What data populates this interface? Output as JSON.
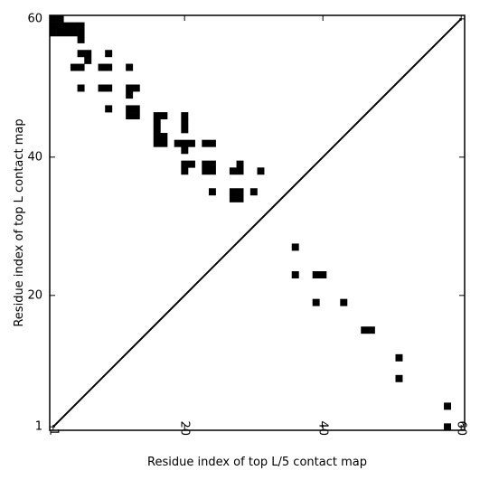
{
  "chart_data": {
    "type": "heatmap",
    "title": "",
    "xlabel": "Residue index of top L/5 contact map",
    "ylabel": "Residue index of top L contact map",
    "xlim": [
      0.5,
      60.5
    ],
    "ylim": [
      0.5,
      60.5
    ],
    "x_ticks": [
      1,
      20,
      40,
      60
    ],
    "x_tick_labels": [
      "1",
      "20",
      "40",
      "60"
    ],
    "y_ticks": [
      1,
      20,
      40,
      60
    ],
    "y_tick_labels": [
      "1",
      "20",
      "40",
      "60"
    ],
    "x_tick_rotation": -90,
    "diagonal_line": true,
    "grid": false,
    "cell_color": "#000000",
    "background_color": "#ffffff",
    "upper_contacts": [
      [
        1,
        60
      ],
      [
        2,
        60
      ],
      [
        1,
        59
      ],
      [
        2,
        59
      ],
      [
        3,
        59
      ],
      [
        4,
        59
      ],
      [
        5,
        59
      ],
      [
        1,
        58
      ],
      [
        2,
        58
      ],
      [
        3,
        58
      ],
      [
        4,
        58
      ],
      [
        5,
        58
      ],
      [
        5,
        57
      ],
      [
        5,
        55
      ],
      [
        6,
        55
      ],
      [
        6,
        54
      ],
      [
        4,
        53
      ],
      [
        5,
        53
      ],
      [
        9,
        55
      ],
      [
        8,
        53
      ],
      [
        9,
        53
      ],
      [
        12,
        53
      ],
      [
        5,
        50
      ],
      [
        8,
        50
      ],
      [
        9,
        50
      ],
      [
        12,
        50
      ],
      [
        13,
        50
      ],
      [
        12,
        49
      ],
      [
        9,
        47
      ],
      [
        12,
        47
      ],
      [
        13,
        47
      ],
      [
        12,
        46
      ],
      [
        13,
        46
      ],
      [
        16,
        46
      ],
      [
        17,
        46
      ],
      [
        16,
        45
      ],
      [
        20,
        46
      ],
      [
        20,
        45
      ],
      [
        16,
        44
      ],
      [
        20,
        44
      ],
      [
        16,
        43
      ],
      [
        17,
        43
      ],
      [
        16,
        42
      ],
      [
        17,
        42
      ],
      [
        19,
        42
      ],
      [
        20,
        42
      ],
      [
        21,
        42
      ],
      [
        23,
        42
      ],
      [
        24,
        42
      ],
      [
        20,
        41
      ],
      [
        20,
        39
      ],
      [
        21,
        39
      ],
      [
        23,
        39
      ],
      [
        24,
        39
      ],
      [
        28,
        39
      ],
      [
        20,
        38
      ],
      [
        23,
        38
      ],
      [
        24,
        38
      ],
      [
        27,
        38
      ],
      [
        28,
        38
      ],
      [
        31,
        38
      ],
      [
        24,
        35
      ],
      [
        27,
        35
      ],
      [
        28,
        35
      ],
      [
        30,
        35
      ],
      [
        27,
        34
      ],
      [
        28,
        34
      ]
    ],
    "lower_contacts": [
      [
        36,
        27
      ],
      [
        36,
        23
      ],
      [
        39,
        23
      ],
      [
        40,
        23
      ],
      [
        39,
        19
      ],
      [
        43,
        19
      ],
      [
        46,
        15
      ],
      [
        47,
        15
      ],
      [
        51,
        11
      ],
      [
        51,
        8
      ],
      [
        58,
        4
      ],
      [
        58,
        1
      ]
    ]
  }
}
